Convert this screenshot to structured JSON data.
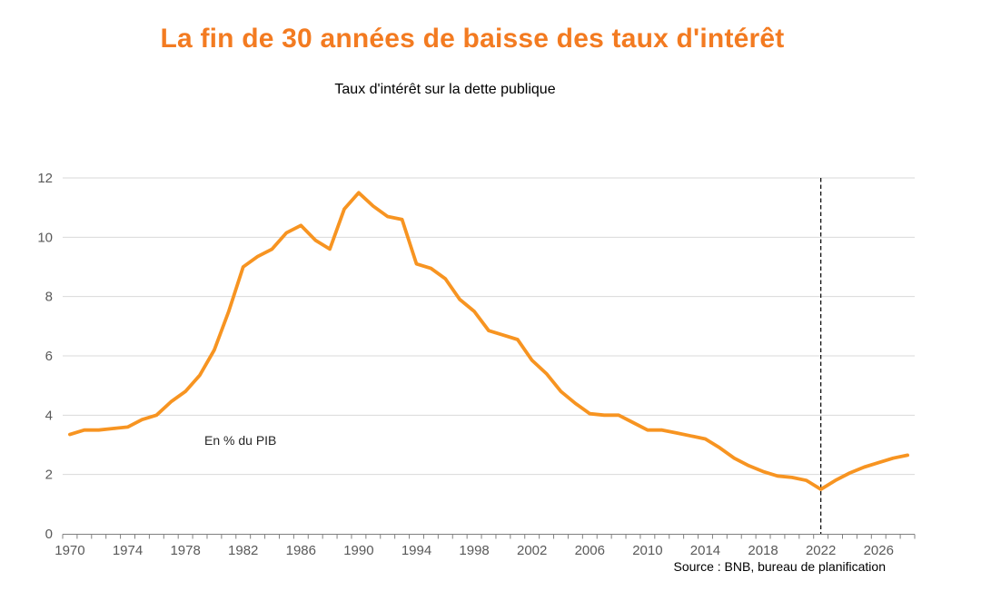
{
  "header": {
    "title": "La fin de 30 années de baisse des taux d'intérêt",
    "subtitle": "Taux d'intérêt sur la dette publique"
  },
  "annotation": {
    "unit_label": "En % du PIB"
  },
  "source": {
    "label": "Source : BNB, bureau de planification"
  },
  "colors": {
    "title": "#F37B21",
    "line": "#F79421",
    "gridline": "#D9D9D9",
    "axis": "#808080",
    "tick_label": "#595959",
    "forecast_divider": "#000000"
  },
  "chart_data": {
    "type": "line",
    "title": "La fin de 30 années de baisse des taux d'intérêt",
    "subtitle": "Taux d'intérêt sur la dette publique",
    "ylabel": "En % du PIB",
    "source": "Source : BNB, bureau de planification",
    "grid": "horizontal",
    "legend": "none",
    "ylim": [
      0,
      12
    ],
    "y_ticks": [
      0,
      2,
      4,
      6,
      8,
      10,
      12
    ],
    "x_tick_labels": [
      "1970",
      "1974",
      "1978",
      "1982",
      "1986",
      "1990",
      "1994",
      "1998",
      "2002",
      "2006",
      "2010",
      "2014",
      "2018",
      "2022",
      "2026"
    ],
    "forecast_divider_x": 2022,
    "x": [
      1970,
      1971,
      1972,
      1973,
      1974,
      1975,
      1976,
      1977,
      1978,
      1979,
      1980,
      1981,
      1982,
      1983,
      1984,
      1985,
      1986,
      1987,
      1988,
      1989,
      1990,
      1991,
      1992,
      1993,
      1994,
      1995,
      1996,
      1997,
      1998,
      1999,
      2000,
      2001,
      2002,
      2003,
      2004,
      2005,
      2006,
      2007,
      2008,
      2009,
      2010,
      2011,
      2012,
      2013,
      2014,
      2015,
      2016,
      2017,
      2018,
      2019,
      2020,
      2021,
      2022,
      2023,
      2024,
      2025,
      2026,
      2027,
      2028
    ],
    "series": [
      {
        "name": "Taux d'intérêt sur la dette publique (en % du PIB)",
        "values": [
          3.35,
          3.5,
          3.5,
          3.55,
          3.6,
          3.85,
          4.0,
          4.45,
          4.8,
          5.35,
          6.2,
          7.5,
          9.0,
          9.35,
          9.6,
          10.15,
          10.4,
          9.9,
          9.6,
          10.95,
          11.5,
          11.05,
          10.7,
          10.6,
          9.1,
          8.95,
          8.6,
          7.9,
          7.5,
          6.85,
          6.7,
          6.55,
          5.85,
          5.4,
          4.8,
          4.4,
          4.05,
          4.0,
          4.0,
          3.75,
          3.5,
          3.5,
          3.4,
          3.3,
          3.2,
          2.9,
          2.55,
          2.3,
          2.1,
          1.95,
          1.9,
          1.8,
          1.5,
          1.8,
          2.05,
          2.25,
          2.4,
          2.55,
          2.65
        ]
      }
    ]
  }
}
